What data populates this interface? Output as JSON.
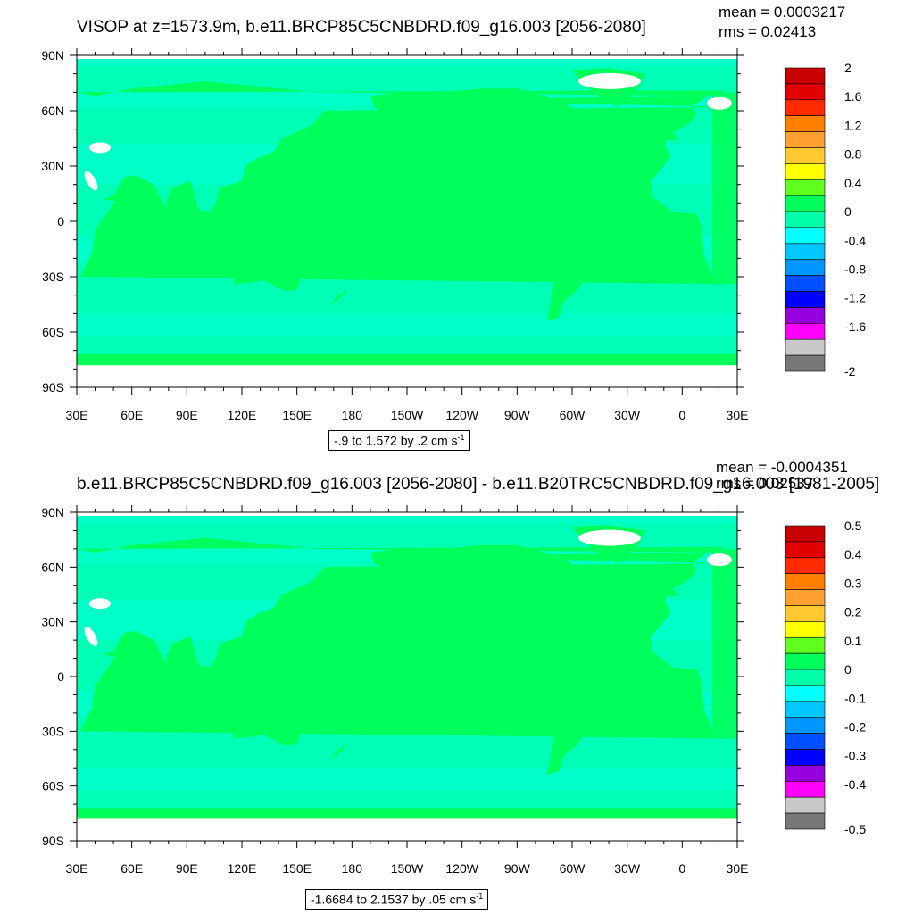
{
  "panels": [
    {
      "title": "VISOP at z=1573.9m, b.e11.BRCP85C5CNBDRD.f09_g16.003 [2056-2080]",
      "mean_label": "mean = 0.0003217",
      "rms_label": "rms = 0.02413",
      "range_text": "-.9 to 1.572 by .2 cm s",
      "range_sup": "-1",
      "colorbar_labels": [
        "2",
        "1.6",
        "1.2",
        "0.8",
        "0.4",
        "0",
        "-0.4",
        "-0.8",
        "-1.2",
        "-1.6",
        "-2"
      ]
    },
    {
      "title": "b.e11.BRCP85C5CNBDRD.f09_g16.003 [2056-2080] - b.e11.B20TRC5CNBDRD.f09_g16.003 [1981-2005]",
      "mean_label": "mean = -0.0004351",
      "rms_label": "rms = 0.02537",
      "range_text": "-1.6684 to 2.1537 by .05 cm s",
      "range_sup": "-1",
      "colorbar_labels": [
        "0.5",
        "0.4",
        "0.3",
        "0.2",
        "0.1",
        "0",
        "-0.1",
        "-0.2",
        "-0.3",
        "-0.4",
        "-0.5"
      ]
    }
  ],
  "lat_labels": [
    "90N",
    "60N",
    "30N",
    "0",
    "30S",
    "60S",
    "90S"
  ],
  "lon_labels": [
    "30E",
    "60E",
    "90E",
    "120E",
    "150E",
    "180",
    "150W",
    "120W",
    "90W",
    "60W",
    "30W",
    "0",
    "30E"
  ],
  "colorbar_colors": [
    "#c80000",
    "#e00000",
    "#ff2a00",
    "#ff8000",
    "#ffa030",
    "#ffc830",
    "#ffff00",
    "#60ff20",
    "#00ff5a",
    "#00ffa8",
    "#00ffff",
    "#00c8ff",
    "#0096ff",
    "#0050ff",
    "#0000ff",
    "#9600dc",
    "#ff00ff",
    "#c8c8c8",
    "#787878"
  ],
  "map_colors": {
    "land": "#00ff5a",
    "ocean_low": "#00ffc8",
    "ocean_mid": "#00ffa8",
    "missing": "#ffffff"
  }
}
